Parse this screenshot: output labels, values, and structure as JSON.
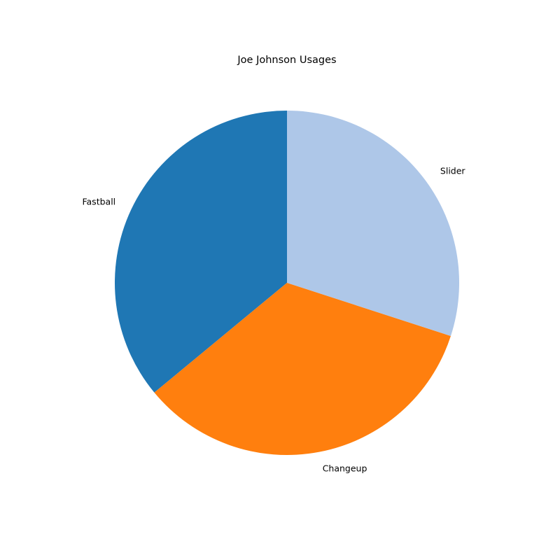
{
  "chart_data": {
    "type": "pie",
    "title": "Joe Johnson Usages",
    "categories": [
      "Fastball",
      "Changeup",
      "Slider"
    ],
    "values": [
      36,
      34,
      30
    ],
    "colors": [
      "#1f77b4",
      "#ff7f0e",
      "#aec7e8"
    ],
    "start_angle_deg": 90,
    "direction": "counterclockwise",
    "legend": "none"
  }
}
